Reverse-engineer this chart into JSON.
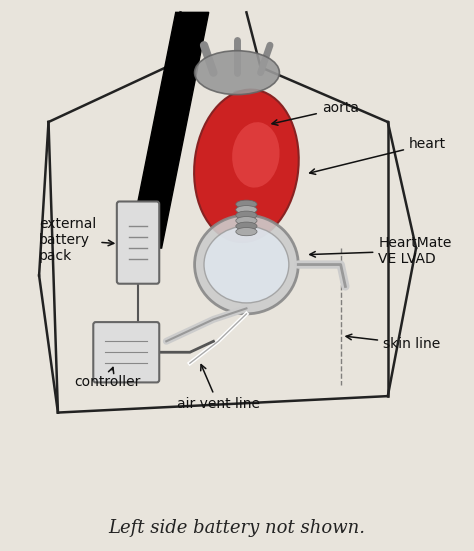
{
  "background_color": "#e8e4dc",
  "title": "Left side battery not shown.",
  "title_fontsize": 13,
  "title_style": "italic",
  "title_color": "#222222",
  "label_configs": [
    {
      "label": "aorta",
      "lxy": [
        0.68,
        0.805
      ],
      "axy": [
        0.565,
        0.775
      ],
      "ha": "left",
      "va": "center"
    },
    {
      "label": "heart",
      "lxy": [
        0.865,
        0.74
      ],
      "axy": [
        0.645,
        0.685
      ],
      "ha": "left",
      "va": "center"
    },
    {
      "label": "external\nbattery\npack",
      "lxy": [
        0.08,
        0.565
      ],
      "axy": [
        0.248,
        0.558
      ],
      "ha": "left",
      "va": "center"
    },
    {
      "label": "HeartMate\nVE LVAD",
      "lxy": [
        0.8,
        0.545
      ],
      "axy": [
        0.645,
        0.538
      ],
      "ha": "left",
      "va": "center"
    },
    {
      "label": "controller",
      "lxy": [
        0.155,
        0.305
      ],
      "axy": [
        0.24,
        0.34
      ],
      "ha": "left",
      "va": "center"
    },
    {
      "label": "air vent line",
      "lxy": [
        0.46,
        0.265
      ],
      "axy": [
        0.42,
        0.345
      ],
      "ha": "center",
      "va": "center"
    },
    {
      "label": "skin line",
      "lxy": [
        0.81,
        0.375
      ],
      "axy": [
        0.722,
        0.39
      ],
      "ha": "left",
      "va": "center"
    }
  ],
  "fig_width": 4.74,
  "fig_height": 5.51,
  "dpi": 100,
  "line_color": "#222222",
  "line_lw": 1.8,
  "heart_fc": "#cc2222",
  "heart_ec": "#882222",
  "heart_hi_fc": "#ee5555",
  "aorta_fc": "#999999",
  "aorta_ec": "#666666",
  "lvad_fc": "#cccccc",
  "lvad_ec": "#888888",
  "lvad_inner_fc": "#e0e8f0",
  "lvad_inner_ec": "#999999",
  "tube_fc": "#cccccc",
  "tube_ec": "#999999",
  "batt_fc": "#dddddd",
  "batt_ec": "#666666",
  "ctrl_fc": "#dddddd",
  "ctrl_ec": "#666666",
  "wire_color": "#555555"
}
